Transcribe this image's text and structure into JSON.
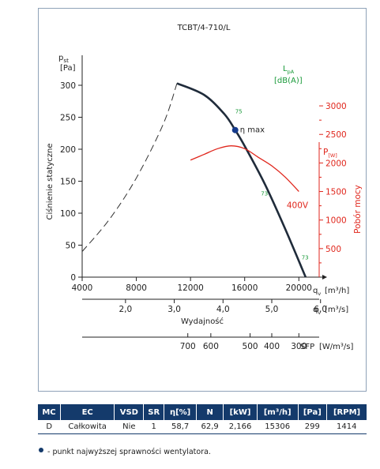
{
  "chart_data": {
    "type": "line",
    "title": "TCBT/4-710/L",
    "y_axis": {
      "label": "Ciśnienie statyczne",
      "symbol": "p",
      "symbol_sub": "st",
      "unit": "[Pa]",
      "ticks": [
        0,
        50,
        100,
        150,
        200,
        250,
        300
      ],
      "range": [
        0,
        300
      ]
    },
    "x_axis_m3h": {
      "symbol": "q",
      "symbol_sub": "v",
      "unit": "[m³/h]",
      "ticks": [
        4000,
        8000,
        12000,
        16000,
        20000
      ],
      "range": [
        4000,
        21500
      ]
    },
    "x_axis_m3s": {
      "symbol": "q",
      "symbol_sub": "v",
      "unit": "[m³/s]",
      "ticks": [
        "2,0",
        "3,0",
        "4,0",
        "5,0",
        "6,0"
      ],
      "tick_values": [
        2.0,
        3.0,
        4.0,
        5.0,
        6.0
      ]
    },
    "x_caption": "Wydajność",
    "sfp_axis": {
      "label": "SFP",
      "unit": "[W/m³/s]",
      "ticks": [
        "700",
        "600",
        "500",
        "400",
        "300"
      ],
      "tick_positions_m3h": [
        11800,
        13500,
        16400,
        18000,
        20000
      ]
    },
    "power_axis": {
      "label": "Pobór mocy",
      "symbol": "P",
      "unit": "[W]",
      "ticks": [
        0,
        500,
        1000,
        1500,
        2000,
        2500,
        3000
      ],
      "range": [
        0,
        3250
      ]
    },
    "noise_legend": {
      "symbol": "L",
      "symbol_sub": "pA",
      "unit": "[dB(A)]"
    },
    "series": [
      {
        "role": "pressure_dashed",
        "x": [
          4000,
          6000,
          8000,
          10000,
          11000
        ],
        "y": [
          40,
          90,
          155,
          240,
          303
        ]
      },
      {
        "role": "pressure",
        "x": [
          11000,
          13000,
          14500,
          15300,
          16000,
          17500,
          19000,
          20500
        ],
        "y": [
          303,
          285,
          255,
          230,
          205,
          145,
          75,
          0
        ]
      },
      {
        "role": "power",
        "x": [
          12000,
          13000,
          14000,
          15000,
          16000,
          17000,
          18000,
          19000,
          20000
        ],
        "y": [
          2050,
          2150,
          2250,
          2300,
          2250,
          2100,
          1950,
          1750,
          1500
        ]
      }
    ],
    "annotations": {
      "max_efficiency": {
        "x": 15300,
        "y": 230,
        "label": "η max"
      },
      "noise_labels": [
        {
          "x": 15300,
          "y": 256,
          "text": "75"
        },
        {
          "x": 17200,
          "y": 128,
          "text": "73"
        },
        {
          "x": 20200,
          "y": 28,
          "text": "73"
        }
      ],
      "power_label": {
        "x": 19100,
        "y": 108,
        "text": "400V"
      }
    }
  },
  "table": {
    "headers": [
      "MC",
      "EC",
      "VSD",
      "SR",
      "η[%]",
      "N",
      "[kW]",
      "[m³/h]",
      "[Pa]",
      "[RPM]"
    ],
    "row": [
      "D",
      "Całkowita",
      "Nie",
      "1",
      "58,7",
      "62,9",
      "2,166",
      "15306",
      "299",
      "1414"
    ]
  },
  "legend_note": "- punkt najwyższej sprawności wentylatora."
}
